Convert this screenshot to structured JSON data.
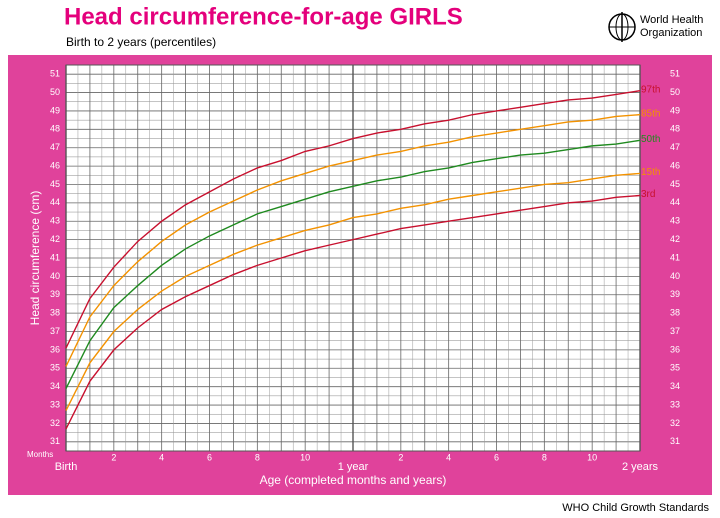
{
  "header": {
    "org_name": [
      "World Health",
      "Organization"
    ],
    "footer": "WHO Child Growth Standards"
  },
  "chart_data": {
    "type": "line",
    "title": "Head circumference-for-age  GIRLS",
    "subtitle": "Birth to 2 years (percentiles)",
    "x_label": "Age (completed months and years)",
    "x_unit_label": "Months",
    "y_label": "Head circumference (cm)",
    "x": [
      0,
      1,
      2,
      3,
      4,
      5,
      6,
      7,
      8,
      9,
      10,
      11,
      12,
      13,
      14,
      15,
      16,
      17,
      18,
      19,
      20,
      21,
      22,
      23,
      24
    ],
    "series": [
      {
        "name": "97th",
        "color": "#c8102e",
        "values": [
          36.1,
          38.8,
          40.5,
          41.9,
          43.0,
          43.9,
          44.6,
          45.3,
          45.9,
          46.3,
          46.8,
          47.1,
          47.5,
          47.8,
          48.0,
          48.3,
          48.5,
          48.8,
          49.0,
          49.2,
          49.4,
          49.6,
          49.7,
          49.9,
          50.1
        ]
      },
      {
        "name": "85th",
        "color": "#f39200",
        "values": [
          35.1,
          37.8,
          39.5,
          40.8,
          41.9,
          42.8,
          43.5,
          44.1,
          44.7,
          45.2,
          45.6,
          46.0,
          46.3,
          46.6,
          46.8,
          47.1,
          47.3,
          47.6,
          47.8,
          48.0,
          48.2,
          48.4,
          48.5,
          48.7,
          48.8
        ]
      },
      {
        "name": "50th",
        "color": "#1f8a1f",
        "values": [
          33.9,
          36.5,
          38.3,
          39.5,
          40.6,
          41.5,
          42.2,
          42.8,
          43.4,
          43.8,
          44.2,
          44.6,
          44.9,
          45.2,
          45.4,
          45.7,
          45.9,
          46.2,
          46.4,
          46.6,
          46.7,
          46.9,
          47.1,
          47.2,
          47.4
        ]
      },
      {
        "name": "15th",
        "color": "#f39200",
        "values": [
          32.7,
          35.3,
          37.0,
          38.2,
          39.2,
          40.0,
          40.6,
          41.2,
          41.7,
          42.1,
          42.5,
          42.8,
          43.2,
          43.4,
          43.7,
          43.9,
          44.2,
          44.4,
          44.6,
          44.8,
          45.0,
          45.1,
          45.3,
          45.5,
          45.6
        ]
      },
      {
        "name": "3rd",
        "color": "#c8102e",
        "values": [
          31.7,
          34.3,
          36.0,
          37.2,
          38.2,
          38.9,
          39.5,
          40.1,
          40.6,
          41.0,
          41.4,
          41.7,
          42.0,
          42.3,
          42.6,
          42.8,
          43.0,
          43.2,
          43.4,
          43.6,
          43.8,
          44.0,
          44.1,
          44.3,
          44.4
        ]
      }
    ],
    "xlim": [
      0,
      24
    ],
    "xticks": [
      {
        "value": 0,
        "label": "Birth"
      },
      2,
      4,
      6,
      8,
      10,
      {
        "value": 12,
        "label": "1 year"
      },
      {
        "value": 14,
        "label": "2"
      },
      {
        "value": 16,
        "label": "4"
      },
      {
        "value": 18,
        "label": "6"
      },
      {
        "value": 20,
        "label": "8"
      },
      {
        "value": 22,
        "label": "10"
      },
      {
        "value": 24,
        "label": "2 years"
      }
    ],
    "ylim": [
      30.5,
      51.5
    ],
    "yticks": [
      31,
      32,
      33,
      34,
      35,
      36,
      37,
      38,
      39,
      40,
      41,
      42,
      43,
      44,
      45,
      46,
      47,
      48,
      49,
      50,
      51
    ],
    "grid": true
  }
}
